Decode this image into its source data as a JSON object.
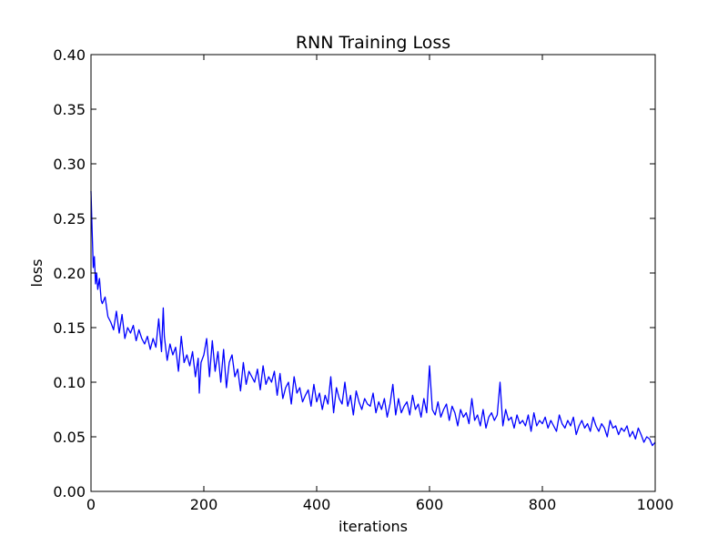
{
  "chart_data": {
    "type": "line",
    "title": "RNN Training Loss",
    "xlabel": "iterations",
    "ylabel": "loss",
    "xlim": [
      0,
      1000
    ],
    "ylim": [
      0.0,
      0.4
    ],
    "xticks": [
      0,
      200,
      400,
      600,
      800,
      1000
    ],
    "xtick_labels": [
      "0",
      "200",
      "400",
      "600",
      "800",
      "1000"
    ],
    "yticks": [
      0.0,
      0.05,
      0.1,
      0.15,
      0.2,
      0.25,
      0.3,
      0.35,
      0.4
    ],
    "ytick_labels": [
      "0.00",
      "0.05",
      "0.10",
      "0.15",
      "0.20",
      "0.25",
      "0.30",
      "0.35",
      "0.40"
    ],
    "grid": false,
    "line_color": "#0000ff",
    "series": [
      {
        "x": [
          0,
          2,
          4,
          6,
          8,
          10,
          12,
          15,
          18,
          20,
          25,
          30,
          35,
          40,
          45,
          50,
          55,
          60,
          65,
          70,
          75,
          80,
          85,
          90,
          95,
          100,
          105,
          110,
          115,
          120,
          125,
          128,
          130,
          135,
          140,
          145,
          150,
          155,
          160,
          165,
          170,
          175,
          180,
          185,
          190,
          192,
          195,
          200,
          205,
          210,
          215,
          220,
          225,
          230,
          235,
          240,
          245,
          250,
          255,
          260,
          265,
          270,
          275,
          280,
          285,
          290,
          295,
          300,
          305,
          310,
          315,
          320,
          325,
          330,
          335,
          340,
          345,
          350,
          355,
          360,
          365,
          370,
          375,
          380,
          385,
          390,
          395,
          400,
          405,
          410,
          415,
          420,
          425,
          430,
          435,
          440,
          445,
          450,
          455,
          460,
          465,
          470,
          475,
          480,
          485,
          490,
          495,
          500,
          505,
          510,
          515,
          520,
          525,
          530,
          535,
          540,
          545,
          550,
          555,
          560,
          565,
          570,
          575,
          580,
          585,
          590,
          595,
          600,
          605,
          610,
          615,
          620,
          625,
          630,
          635,
          640,
          645,
          650,
          655,
          660,
          665,
          670,
          675,
          680,
          685,
          690,
          695,
          700,
          705,
          710,
          715,
          720,
          725,
          730,
          735,
          740,
          745,
          750,
          755,
          760,
          765,
          770,
          775,
          780,
          785,
          790,
          795,
          800,
          805,
          810,
          815,
          820,
          825,
          830,
          835,
          840,
          845,
          850,
          855,
          860,
          865,
          870,
          875,
          880,
          885,
          890,
          895,
          900,
          905,
          910,
          915,
          920,
          925,
          930,
          935,
          940,
          945,
          950,
          955,
          960,
          965,
          970,
          975,
          980,
          985,
          990,
          995,
          1000
        ],
        "y": [
          0.275,
          0.24,
          0.205,
          0.215,
          0.19,
          0.2,
          0.185,
          0.195,
          0.175,
          0.172,
          0.178,
          0.16,
          0.155,
          0.148,
          0.165,
          0.145,
          0.162,
          0.14,
          0.15,
          0.145,
          0.152,
          0.138,
          0.148,
          0.14,
          0.135,
          0.142,
          0.13,
          0.14,
          0.132,
          0.158,
          0.128,
          0.168,
          0.142,
          0.12,
          0.135,
          0.125,
          0.132,
          0.11,
          0.142,
          0.118,
          0.125,
          0.115,
          0.128,
          0.105,
          0.122,
          0.09,
          0.118,
          0.125,
          0.14,
          0.105,
          0.138,
          0.11,
          0.128,
          0.1,
          0.13,
          0.095,
          0.118,
          0.125,
          0.105,
          0.112,
          0.092,
          0.118,
          0.098,
          0.11,
          0.105,
          0.1,
          0.112,
          0.093,
          0.115,
          0.098,
          0.105,
          0.1,
          0.11,
          0.088,
          0.108,
          0.085,
          0.095,
          0.1,
          0.08,
          0.105,
          0.09,
          0.095,
          0.082,
          0.088,
          0.093,
          0.078,
          0.098,
          0.082,
          0.09,
          0.075,
          0.088,
          0.08,
          0.105,
          0.072,
          0.095,
          0.085,
          0.08,
          0.1,
          0.078,
          0.088,
          0.07,
          0.092,
          0.082,
          0.075,
          0.085,
          0.08,
          0.078,
          0.09,
          0.072,
          0.082,
          0.075,
          0.085,
          0.068,
          0.08,
          0.098,
          0.07,
          0.085,
          0.072,
          0.078,
          0.082,
          0.07,
          0.088,
          0.075,
          0.08,
          0.068,
          0.085,
          0.072,
          0.115,
          0.075,
          0.07,
          0.082,
          0.068,
          0.075,
          0.08,
          0.065,
          0.078,
          0.072,
          0.06,
          0.075,
          0.068,
          0.072,
          0.062,
          0.085,
          0.065,
          0.07,
          0.06,
          0.075,
          0.058,
          0.068,
          0.072,
          0.065,
          0.07,
          0.1,
          0.06,
          0.075,
          0.065,
          0.068,
          0.058,
          0.07,
          0.062,
          0.065,
          0.06,
          0.07,
          0.055,
          0.072,
          0.06,
          0.065,
          0.062,
          0.068,
          0.058,
          0.065,
          0.06,
          0.055,
          0.07,
          0.062,
          0.058,
          0.065,
          0.06,
          0.068,
          0.052,
          0.06,
          0.065,
          0.058,
          0.062,
          0.055,
          0.068,
          0.06,
          0.055,
          0.062,
          0.058,
          0.05,
          0.065,
          0.058,
          0.06,
          0.052,
          0.058,
          0.055,
          0.06,
          0.05,
          0.055,
          0.048,
          0.058,
          0.052,
          0.045,
          0.05,
          0.048,
          0.042,
          0.045
        ]
      }
    ]
  }
}
